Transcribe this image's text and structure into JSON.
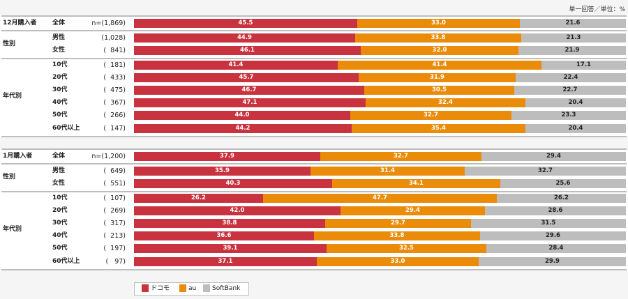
{
  "note": "単一回答／単位：%",
  "colors": {
    "docomo": "#c9323f",
    "au": "#ea8c0a",
    "softbank": "#bdbdbd"
  },
  "chart_data": {
    "type": "bar",
    "orientation": "horizontal-stacked-100",
    "unit": "%",
    "series_names": [
      "ドコモ",
      "au",
      "SoftBank"
    ],
    "xlim": [
      0,
      100
    ],
    "sections": [
      {
        "title": "12月購入者",
        "rows": [
          {
            "group": "",
            "category": "全体",
            "n": "n=(1,869)",
            "values": [
              45.5,
              33.0,
              21.6
            ],
            "labels": [
              "45.5",
              "33.0",
              "21.6"
            ]
          },
          {
            "group": "性別",
            "category": "男性",
            "n": "(1,028)",
            "values": [
              44.9,
              33.8,
              21.3
            ],
            "labels": [
              "44.9",
              "33.8",
              "21.3"
            ]
          },
          {
            "group": "性別",
            "category": "女性",
            "n": "(  841)",
            "values": [
              46.1,
              32.0,
              21.9
            ],
            "labels": [
              "46.1",
              "32.0",
              "21.9"
            ]
          },
          {
            "group": "年代別",
            "category": "10代",
            "n": "(  181)",
            "values": [
              41.4,
              41.4,
              17.1
            ],
            "labels": [
              "41.4",
              "41.4",
              "17.1"
            ]
          },
          {
            "group": "年代別",
            "category": "20代",
            "n": "(  433)",
            "values": [
              45.7,
              31.9,
              22.4
            ],
            "labels": [
              "45.7",
              "31.9",
              "22.4"
            ]
          },
          {
            "group": "年代別",
            "category": "30代",
            "n": "(  475)",
            "values": [
              46.7,
              30.5,
              22.7
            ],
            "labels": [
              "46.7",
              "30.5",
              "22.7"
            ]
          },
          {
            "group": "年代別",
            "category": "40代",
            "n": "(  367)",
            "values": [
              47.1,
              32.4,
              20.4
            ],
            "labels": [
              "47.1",
              "32.4",
              "20.4"
            ]
          },
          {
            "group": "年代別",
            "category": "50代",
            "n": "(  266)",
            "values": [
              44.0,
              32.7,
              23.3
            ],
            "labels": [
              "44.0",
              "32.7",
              "23.3"
            ]
          },
          {
            "group": "年代別",
            "category": "60代以上",
            "n": "(  147)",
            "values": [
              44.2,
              35.4,
              20.4
            ],
            "labels": [
              "44.2",
              "35.4",
              "20.4"
            ]
          }
        ]
      },
      {
        "title": "1月購入者",
        "rows": [
          {
            "group": "",
            "category": "全体",
            "n": "n=(1,200)",
            "values": [
              37.9,
              32.7,
              29.4
            ],
            "labels": [
              "37.9",
              "32.7",
              "29.4"
            ]
          },
          {
            "group": "性別",
            "category": "男性",
            "n": "(  649)",
            "values": [
              35.9,
              31.4,
              32.7
            ],
            "labels": [
              "35.9",
              "31.4",
              "32.7"
            ]
          },
          {
            "group": "性別",
            "category": "女性",
            "n": "(  551)",
            "values": [
              40.3,
              34.1,
              25.6
            ],
            "labels": [
              "40.3",
              "34.1",
              "25.6"
            ]
          },
          {
            "group": "年代別",
            "category": "10代",
            "n": "(  107)",
            "values": [
              26.2,
              47.7,
              26.2
            ],
            "labels": [
              "26.2",
              "47.7",
              "26.2"
            ]
          },
          {
            "group": "年代別",
            "category": "20代",
            "n": "(  269)",
            "values": [
              42.0,
              29.4,
              28.6
            ],
            "labels": [
              "42.0",
              "29.4",
              "28.6"
            ]
          },
          {
            "group": "年代別",
            "category": "30代",
            "n": "(  317)",
            "values": [
              38.8,
              29.7,
              31.5
            ],
            "labels": [
              "38.8",
              "29.7",
              "31.5"
            ]
          },
          {
            "group": "年代別",
            "category": "40代",
            "n": "(  213)",
            "values": [
              36.6,
              33.8,
              29.6
            ],
            "labels": [
              "36.6",
              "33.8",
              "29.6"
            ]
          },
          {
            "group": "年代別",
            "category": "50代",
            "n": "(  197)",
            "values": [
              39.1,
              32.5,
              28.4
            ],
            "labels": [
              "39.1",
              "32.5",
              "28.4"
            ]
          },
          {
            "group": "年代別",
            "category": "60代以上",
            "n": "(   97)",
            "values": [
              37.1,
              33.0,
              29.9
            ],
            "labels": [
              "37.1",
              "33.0",
              "29.9"
            ]
          }
        ]
      }
    ],
    "groups": {
      "gender": "性別",
      "age": "年代別"
    },
    "legend": [
      {
        "label": "ドコモ",
        "color": "#c9323f"
      },
      {
        "label": "au",
        "color": "#ea8c0a"
      },
      {
        "label": "SoftBank",
        "color": "#bdbdbd"
      }
    ],
    "legend_position": "bottom-left"
  }
}
